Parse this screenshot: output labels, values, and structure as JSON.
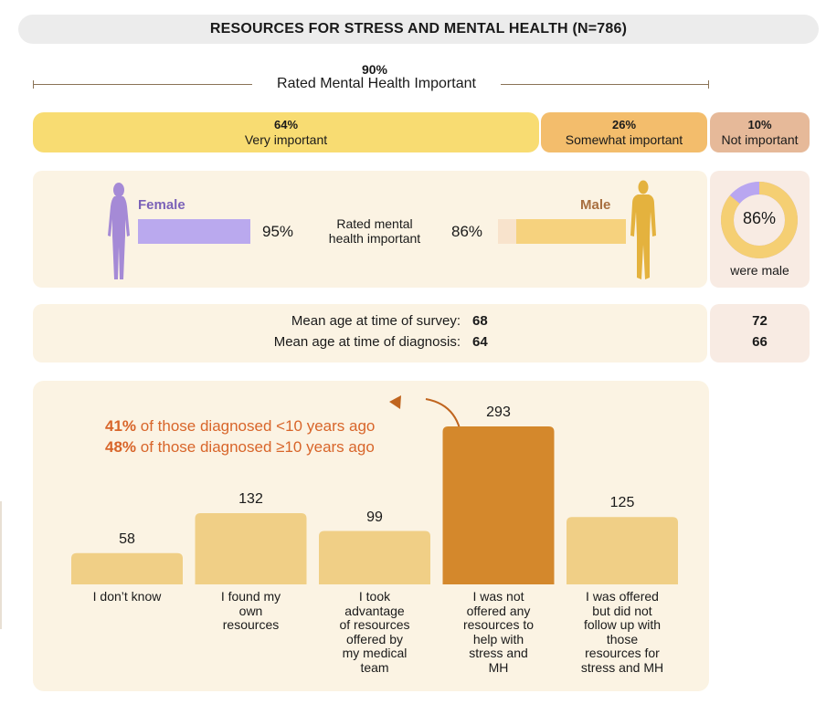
{
  "title": "RESOURCES FOR STRESS AND MENTAL HEALTH (N=786)",
  "summary": {
    "pct": "90%",
    "label": "Rated Mental Health Important"
  },
  "importance_segments": [
    {
      "pct": "64%",
      "label": "Very important",
      "value": 64
    },
    {
      "pct": "26%",
      "label": "Somewhat important",
      "value": 26
    },
    {
      "pct": "10%",
      "label": "Not important",
      "value": 10
    }
  ],
  "gender": {
    "female": {
      "label": "Female",
      "pct": "95%",
      "value": 95
    },
    "male": {
      "label": "Male",
      "pct": "86%",
      "value": 86
    },
    "center_label": "Rated mental health important"
  },
  "donut": {
    "pct": "86%",
    "value": 86,
    "caption": "were male"
  },
  "ages": {
    "survey": {
      "label": "Mean age at time of survey:",
      "female": "68",
      "male": "72"
    },
    "diagnosis": {
      "label": "Mean age at time of diagnosis:",
      "female": "64",
      "male": "66"
    }
  },
  "annotation": {
    "line1": {
      "pct": "41%",
      "text": " of those diagnosed <10 years ago"
    },
    "line2": {
      "pct": "48%",
      "text": " of those diagnosed ≥10 years ago"
    }
  },
  "colors": {
    "female": "#baa9ee",
    "male": "#f6d27e",
    "highlight_bar": "#d4882c",
    "bar": "#f0cf86",
    "annotation": "#d8652a"
  },
  "chart_data": {
    "type": "bar",
    "categories": [
      "I don't know",
      "I found my own resources",
      "I took advantage of resources offered by my medical team",
      "I was not offered any resources to help with stress and MH",
      "I was  offered but did not follow up with those resources for stress and MH"
    ],
    "category_lines": [
      [
        "I don’t know"
      ],
      [
        "I found my",
        "own",
        "resources"
      ],
      [
        "I took",
        "advantage",
        "of resources",
        "offered by",
        "my medical",
        "team"
      ],
      [
        "I was not",
        "offered any",
        "resources to",
        "help with",
        "stress and",
        "MH"
      ],
      [
        "I was  offered",
        "but did not",
        "follow up with",
        "those",
        "resources for",
        "stress and MH"
      ]
    ],
    "values": [
      58,
      132,
      99,
      293,
      125
    ],
    "highlight_index": 3,
    "title": "",
    "xlabel": "",
    "ylabel": "",
    "ylim": [
      0,
      293
    ]
  }
}
